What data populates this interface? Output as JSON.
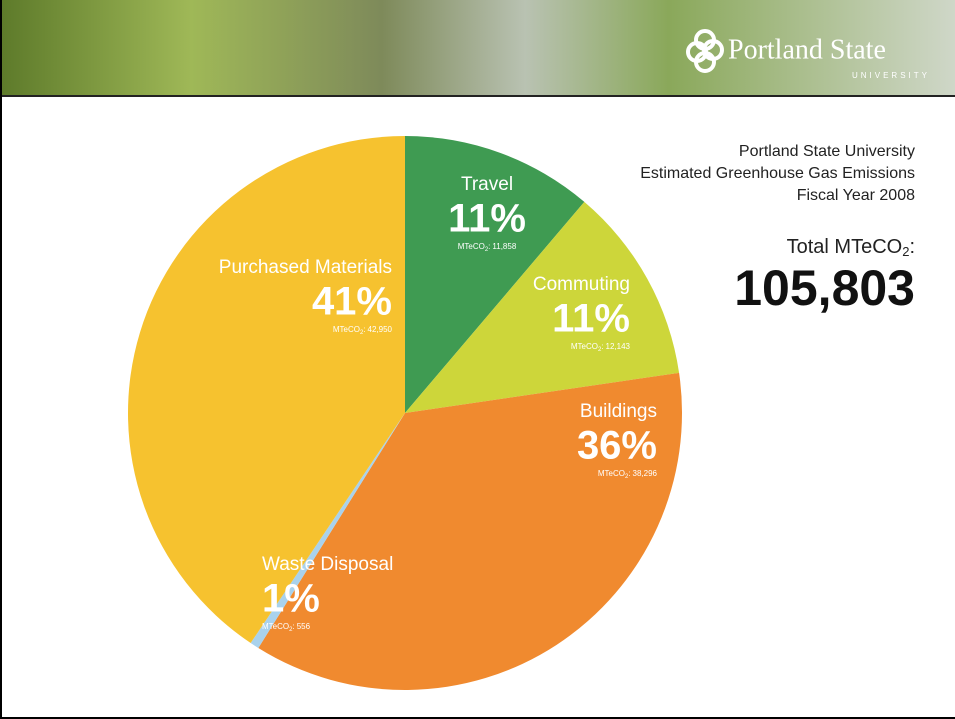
{
  "header": {
    "brand": "Portland State",
    "sub": "UNIVERSITY"
  },
  "chart_data": {
    "type": "pie",
    "title_lines": [
      "Portland State University",
      "Estimated Greenhouse Gas Emissions",
      "Fiscal Year 2008"
    ],
    "total_caption": "Total MTeCO",
    "total_caption_sub": "2",
    "total_caption_suffix": ":",
    "total": {
      "value": 105803,
      "label": "105,803"
    },
    "categories": [
      "Travel",
      "Commuting",
      "Buildings",
      "Waste Disposal",
      "Purchased Materials"
    ],
    "values": [
      11858,
      12143,
      38296,
      556,
      42950
    ],
    "value_labels": [
      "11,858",
      "12,143",
      "38,296",
      "556",
      "42,950"
    ],
    "percent_labels": [
      "11%",
      "11%",
      "36%",
      "1%",
      "41%"
    ],
    "unit_label": "MTeCO",
    "unit_subscript": "2",
    "unit_suffix": ":",
    "colors": [
      "#3f9b52",
      "#cdd63a",
      "#f08a2f",
      "#a9d2ec",
      "#f6c22f"
    ]
  }
}
